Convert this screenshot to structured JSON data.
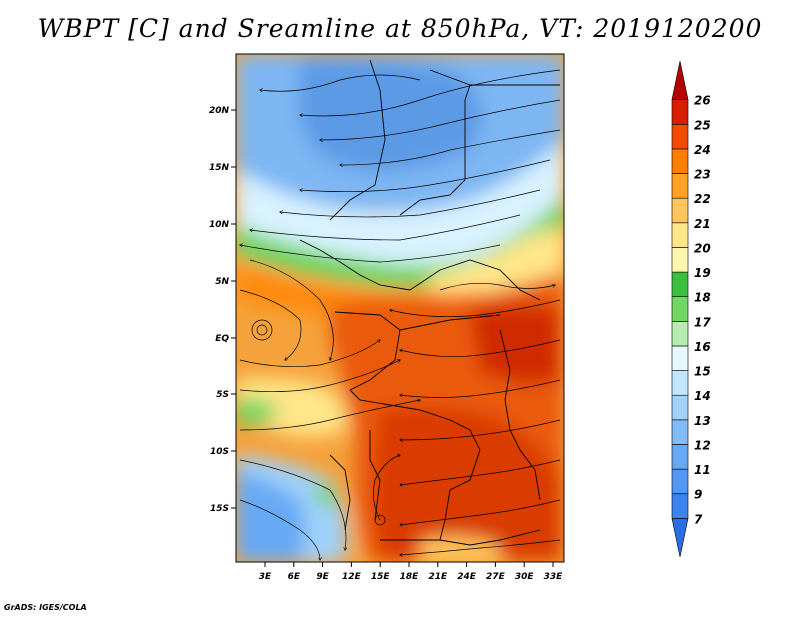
{
  "title": "WBPT [C] and Sreamline at 850hPa, VT: 2019120200",
  "credit": "GrADS: IGES/COLA",
  "map": {
    "lon_labels": [
      "3E",
      "6E",
      "9E",
      "12E",
      "15E",
      "18E",
      "21E",
      "24E",
      "27E",
      "30E",
      "33E"
    ],
    "lat_labels": [
      "20N",
      "15N",
      "10N",
      "5N",
      "EQ",
      "5S",
      "10S",
      "15S"
    ]
  },
  "colorbar": {
    "labels": [
      "7",
      "9",
      "11",
      "12",
      "13",
      "14",
      "15",
      "16",
      "17",
      "18",
      "19",
      "20",
      "21",
      "22",
      "23",
      "24",
      "25",
      "26"
    ],
    "colors": [
      "#2a6ee6",
      "#3b84ef",
      "#5098f2",
      "#66a9f5",
      "#80bdf8",
      "#9fd1fb",
      "#c2e6fd",
      "#e6f8ff",
      "#b5ecb0",
      "#6fd663",
      "#3fbf3f",
      "#fff7b0",
      "#ffe68a",
      "#ffc45c",
      "#ffa226",
      "#ff7e00",
      "#f24a00",
      "#d91e00",
      "#b40000"
    ]
  }
}
